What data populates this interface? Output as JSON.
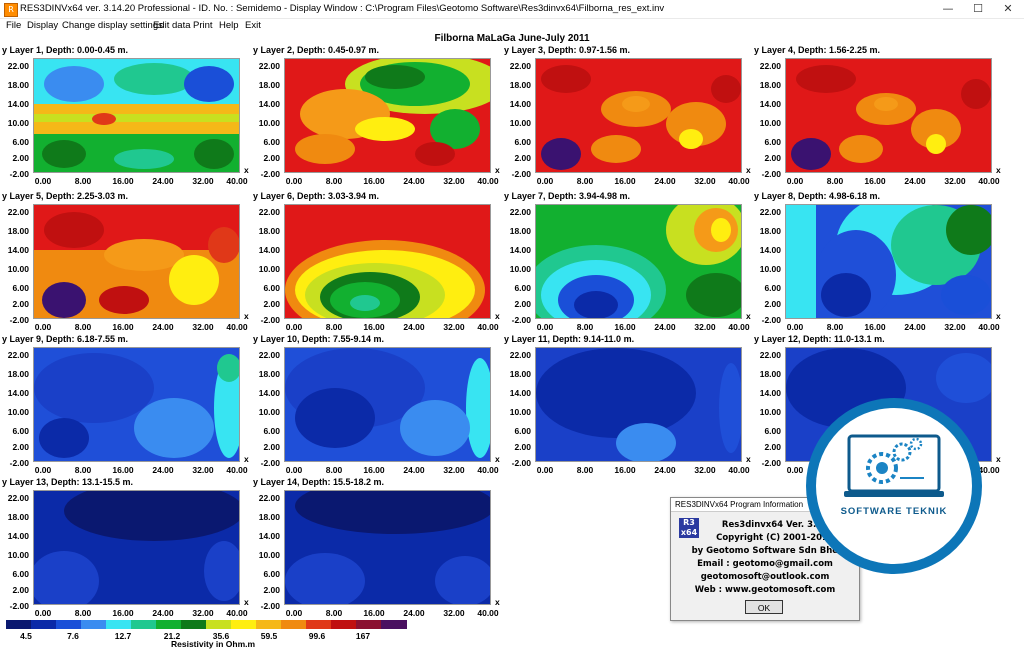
{
  "window": {
    "title": "RES3DINVx64 ver. 3.14.20 Professional - ID. No. : Semidemo  - Display Window : C:\\Program Files\\Geotomo Software\\Res3dinvx64\\Filborna_res_ext.inv",
    "icon": "app-icon",
    "minimize": "—",
    "maximize": "☐",
    "close": "✕"
  },
  "menu": [
    "File",
    "Display",
    "Change display settings",
    "Edit data",
    "Print",
    "Help",
    "Exit"
  ],
  "main_title": "Filborna MaLaGa June-July 2011",
  "colors": {
    "dark_blue": "#0a1f8f",
    "blue": "#1f4fd8",
    "cyan": "#38e4f2",
    "green": "#12b030",
    "yellow": "#ffee10",
    "orange": "#f59a18",
    "red": "#e01818",
    "purple": "#3a1270"
  },
  "y_ticks": [
    "22.00",
    "18.00",
    "14.00",
    "10.00",
    "6.00",
    "2.00",
    "-2.00"
  ],
  "x_ticks": [
    "0.00",
    "8.00",
    "16.00",
    "24.00",
    "32.00",
    "40.00"
  ],
  "x_axis_label": "x",
  "layers": [
    {
      "title": "y Layer 1, Depth: 0.00-0.45 m.",
      "palette": "mixed"
    },
    {
      "title": "y Layer 2, Depth: 0.45-0.97 m.",
      "palette": "warm-green"
    },
    {
      "title": "y Layer 3, Depth: 0.97-1.56 m.",
      "palette": "warm"
    },
    {
      "title": "y Layer 4, Depth: 1.56-2.25 m.",
      "palette": "warm"
    },
    {
      "title": "y Layer 5, Depth: 2.25-3.03 m.",
      "palette": "warm"
    },
    {
      "title": "y Layer 6, Depth: 3.03-3.94 m.",
      "palette": "warm-green"
    },
    {
      "title": "y Layer 7, Depth: 3.94-4.98 m.",
      "palette": "green-cyan"
    },
    {
      "title": "y Layer 8, Depth: 4.98-6.18 m.",
      "palette": "blue-cyan"
    },
    {
      "title": "y Layer 9, Depth: 6.18-7.55 m.",
      "palette": "blue"
    },
    {
      "title": "y Layer 10, Depth: 7.55-9.14 m.",
      "palette": "blue"
    },
    {
      "title": "y Layer 11, Depth: 9.14-11.0 m.",
      "palette": "blue"
    },
    {
      "title": "y Layer 12, Depth: 11.0-13.1 m.",
      "palette": "blue"
    },
    {
      "title": "y Layer 13, Depth: 13.1-15.5 m.",
      "palette": "deep-blue"
    },
    {
      "title": "y Layer 14, Depth: 15.5-18.2 m.",
      "palette": "deep-blue"
    }
  ],
  "colorbar": {
    "colors": [
      "#0a1870",
      "#0b2aa8",
      "#1a4fd8",
      "#3a8cf0",
      "#38e4f2",
      "#20c890",
      "#12b030",
      "#0f7a1a",
      "#c8e020",
      "#ffee10",
      "#f5b818",
      "#f08a10",
      "#e03818",
      "#c01010",
      "#8a1030",
      "#4a1060"
    ],
    "labels": [
      "4.5",
      "7.6",
      "12.7",
      "21.2",
      "35.6",
      "59.5",
      "99.6",
      "167"
    ],
    "title": "Resistivity in Ohm.m"
  },
  "dialog": {
    "title": "RES3DINVx64 Program Information",
    "logo_text": "R3 x64",
    "lines": [
      "Res3dinvx64 Ver. 3.14",
      "Copyright (C) 2001-2018",
      "by Geotomo Software Sdn Bhd",
      "Email : geotomo@gmail.com",
      "geotomosoft@outlook.com",
      "Web : www.geotomosoft.com"
    ],
    "ok": "OK"
  },
  "watermark": {
    "text": "SOFTWARE TEKNIK",
    "icon": "gears-laptop-icon"
  }
}
